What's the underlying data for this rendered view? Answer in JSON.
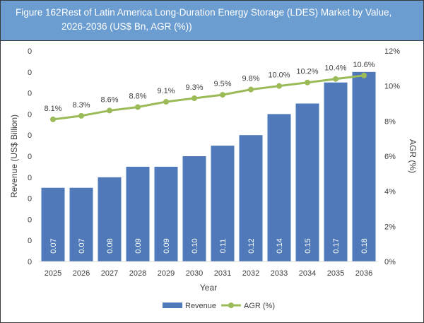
{
  "figure": {
    "number": "Figure 162",
    "title": "Rest of Latin America Long-Duration Energy Storage (LDES) Market by Value, 2026-2036 (US$ Bn, AGR (%))"
  },
  "chart_data": {
    "type": "bar+line",
    "xlabel": "Year",
    "ylabel": "Revenue (US$ Billion)",
    "y2label": "AGR (%)",
    "categories": [
      "2025",
      "2026",
      "2027",
      "2028",
      "2029",
      "2030",
      "2031",
      "2032",
      "2033",
      "2034",
      "2035",
      "2036"
    ],
    "left_tick_labels": [
      "0",
      "0",
      "0",
      "0",
      "0",
      "0",
      "0",
      "0",
      "0",
      "0",
      "0"
    ],
    "ylim": [
      0,
      0.2
    ],
    "y2lim": [
      0,
      12
    ],
    "y2_ticks": [
      "0%",
      "2%",
      "4%",
      "6%",
      "8%",
      "10%",
      "12%"
    ],
    "series": [
      {
        "name": "Revenue",
        "type": "bar",
        "color": "#4f79b8",
        "values": [
          0.07,
          0.07,
          0.08,
          0.09,
          0.09,
          0.1,
          0.11,
          0.12,
          0.14,
          0.15,
          0.17,
          0.18
        ],
        "labels": [
          "0.07",
          "0.07",
          "0.08",
          "0.09",
          "0.09",
          "0.10",
          "0.11",
          "0.12",
          "0.14",
          "0.15",
          "0.17",
          "0.18"
        ]
      },
      {
        "name": "AGR (%)",
        "type": "line",
        "color": "#9bbb59",
        "values": [
          8.1,
          8.3,
          8.6,
          8.8,
          9.1,
          9.3,
          9.5,
          9.8,
          10.0,
          10.2,
          10.4,
          10.6
        ],
        "labels": [
          "8.1%",
          "8.3%",
          "8.6%",
          "8.8%",
          "9.1%",
          "9.3%",
          "9.5%",
          "9.8%",
          "10.0%",
          "10.2%",
          "10.4%",
          "10.6%"
        ]
      }
    ],
    "legend": "bottom",
    "grid": false
  }
}
